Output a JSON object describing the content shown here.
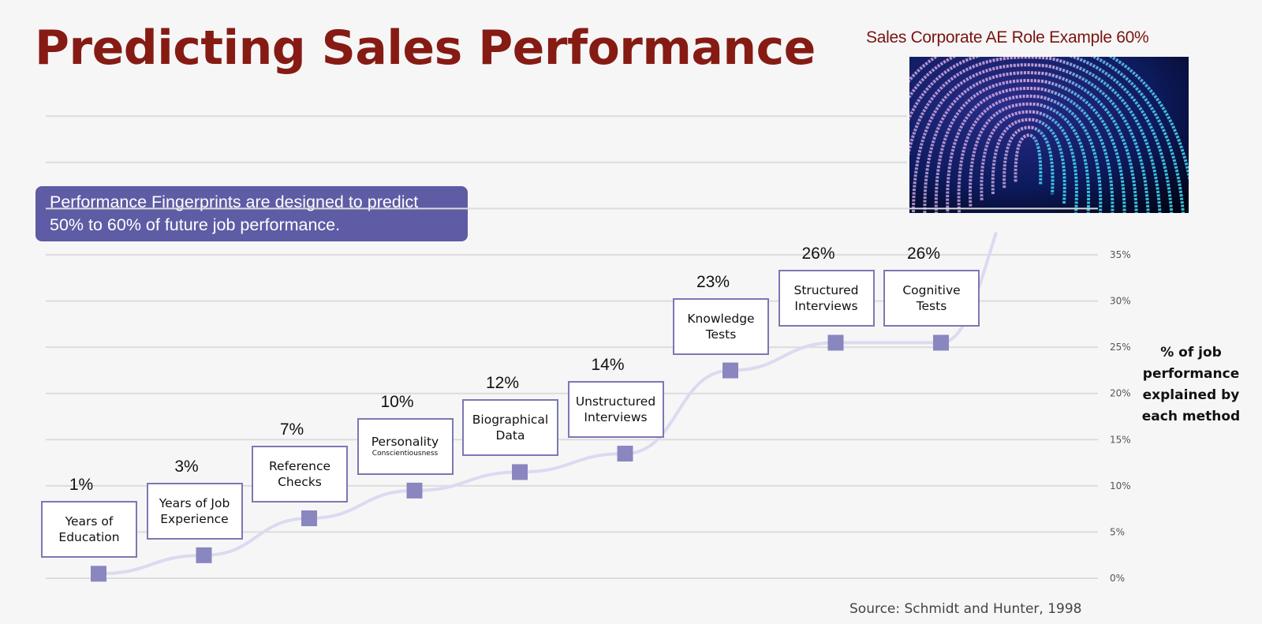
{
  "slide": {
    "title": "Predicting Sales Performance",
    "example_caption": "Sales Corporate AE Role  Example 60%",
    "image_alt": "fingerprint-image",
    "callout_line1": "Performance Fingerprints are designed to predict",
    "callout_line2": "50% to 60% of future job performance.",
    "source": "Source: Schmidt and Hunter, 1998",
    "colors": {
      "title": "#861b14",
      "accent": "#5e5ca4",
      "marker": "#8a86c0",
      "box_border": "#7b78b3"
    }
  },
  "chart_data": {
    "type": "line",
    "title": "",
    "xlabel": "",
    "ylabel": "% of job performance explained by each method",
    "ylabel_lines": [
      "% of job",
      "performance",
      "explained by",
      "each method"
    ],
    "ylim": [
      0,
      35
    ],
    "yticks": [
      0,
      5,
      10,
      15,
      20,
      25,
      30,
      35
    ],
    "ytick_labels": [
      "0%",
      "5%",
      "10%",
      "15%",
      "20%",
      "25%",
      "30%",
      "35%"
    ],
    "grid": true,
    "y_axis_position": "right",
    "categories": [
      "Years of Education",
      "Years of Job Experience",
      "Reference Checks",
      "Personality (Conscientiousness)",
      "Biographical Data",
      "Unstructured Interviews",
      "Knowledge Tests",
      "Structured Interviews",
      "Cognitive Tests"
    ],
    "series": [
      {
        "name": "% of job performance explained",
        "values": [
          1,
          3,
          7,
          10,
          12,
          14,
          23,
          26,
          26
        ]
      }
    ],
    "points": [
      {
        "label_lines": [
          "Years of",
          "Education"
        ],
        "sub": "",
        "value": 1,
        "value_label": "1%"
      },
      {
        "label_lines": [
          "Years of Job",
          "Experience"
        ],
        "sub": "",
        "value": 3,
        "value_label": "3%"
      },
      {
        "label_lines": [
          "Reference",
          "Checks"
        ],
        "sub": "",
        "value": 7,
        "value_label": "7%"
      },
      {
        "label_lines": [
          "Personality"
        ],
        "sub": "Conscientiousness",
        "value": 10,
        "value_label": "10%"
      },
      {
        "label_lines": [
          "Biographical",
          "Data"
        ],
        "sub": "",
        "value": 12,
        "value_label": "12%"
      },
      {
        "label_lines": [
          "Unstructured",
          "Interviews"
        ],
        "sub": "",
        "value": 14,
        "value_label": "14%"
      },
      {
        "label_lines": [
          "Knowledge",
          "Tests"
        ],
        "sub": "",
        "value": 23,
        "value_label": "23%"
      },
      {
        "label_lines": [
          "Structured",
          "Interviews"
        ],
        "sub": "",
        "value": 26,
        "value_label": "26%"
      },
      {
        "label_lines": [
          "Cognitive",
          "Tests"
        ],
        "sub": "",
        "value": 26,
        "value_label": "26%"
      }
    ]
  }
}
